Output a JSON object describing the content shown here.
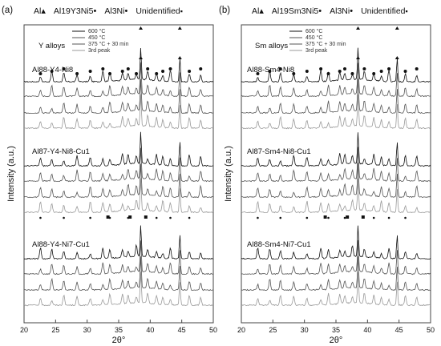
{
  "chart_data": [
    {
      "type": "line",
      "panel_label": "(a)",
      "group_label": "Y alloys",
      "xlabel": "2θ°",
      "ylabel": "Intensity (a.u.)",
      "xlim": [
        20,
        50
      ],
      "x_ticks": [
        "20",
        "25",
        "30",
        "35",
        "40",
        "45",
        "50"
      ],
      "phase_legend": [
        {
          "label": "Al",
          "marker": "triangle"
        },
        {
          "label": "Al19Y3Ni5",
          "marker": "circle"
        },
        {
          "label": "Al3Ni",
          "marker": "small-dot"
        },
        {
          "label": "Unidentified",
          "marker": "square"
        }
      ],
      "series_legend": [
        "600 °C",
        "450 °C",
        "375 °C + 30 min",
        "3rd peak"
      ],
      "alloys": [
        "Al88-Y4-Ni8",
        "Al87-Y4-Ni8-Cu1",
        "Al88-Y4-Ni7-Cu1"
      ],
      "peaks_2theta": [
        22.6,
        24.4,
        26.3,
        28.4,
        30.5,
        32.5,
        33.6,
        35.6,
        36.5,
        37.8,
        38.5,
        39.6,
        41.0,
        42.0,
        43.2,
        44.7,
        46.2,
        48.0
      ],
      "al_peaks_2theta": [
        38.5,
        44.7
      ]
    },
    {
      "type": "line",
      "panel_label": "(b)",
      "group_label": "Sm alloys",
      "xlabel": "2θ°",
      "ylabel": "Intensity (a.u.)",
      "xlim": [
        20,
        50
      ],
      "x_ticks": [
        "20",
        "25",
        "30",
        "35",
        "40",
        "45",
        "50"
      ],
      "phase_legend": [
        {
          "label": "Al",
          "marker": "triangle"
        },
        {
          "label": "Al19Sm3Ni5",
          "marker": "circle"
        },
        {
          "label": "Al3Ni",
          "marker": "small-dot"
        },
        {
          "label": "Unidentified",
          "marker": "square"
        }
      ],
      "series_legend": [
        "600 °C",
        "450 °C",
        "375 °C + 30 min",
        "3rd peak"
      ],
      "alloys": [
        "Al88-Sm4-Ni8",
        "Al87-Sm4-Ni8-Cu1",
        "Al88-Sm4-Ni7-Cu1"
      ],
      "peaks_2theta": [
        22.6,
        24.5,
        26.2,
        28.3,
        30.4,
        32.6,
        33.8,
        35.6,
        36.4,
        37.6,
        38.5,
        39.5,
        41.0,
        42.2,
        43.4,
        44.7,
        46.0,
        47.8
      ],
      "al_peaks_2theta": [
        38.5,
        44.7
      ]
    }
  ]
}
